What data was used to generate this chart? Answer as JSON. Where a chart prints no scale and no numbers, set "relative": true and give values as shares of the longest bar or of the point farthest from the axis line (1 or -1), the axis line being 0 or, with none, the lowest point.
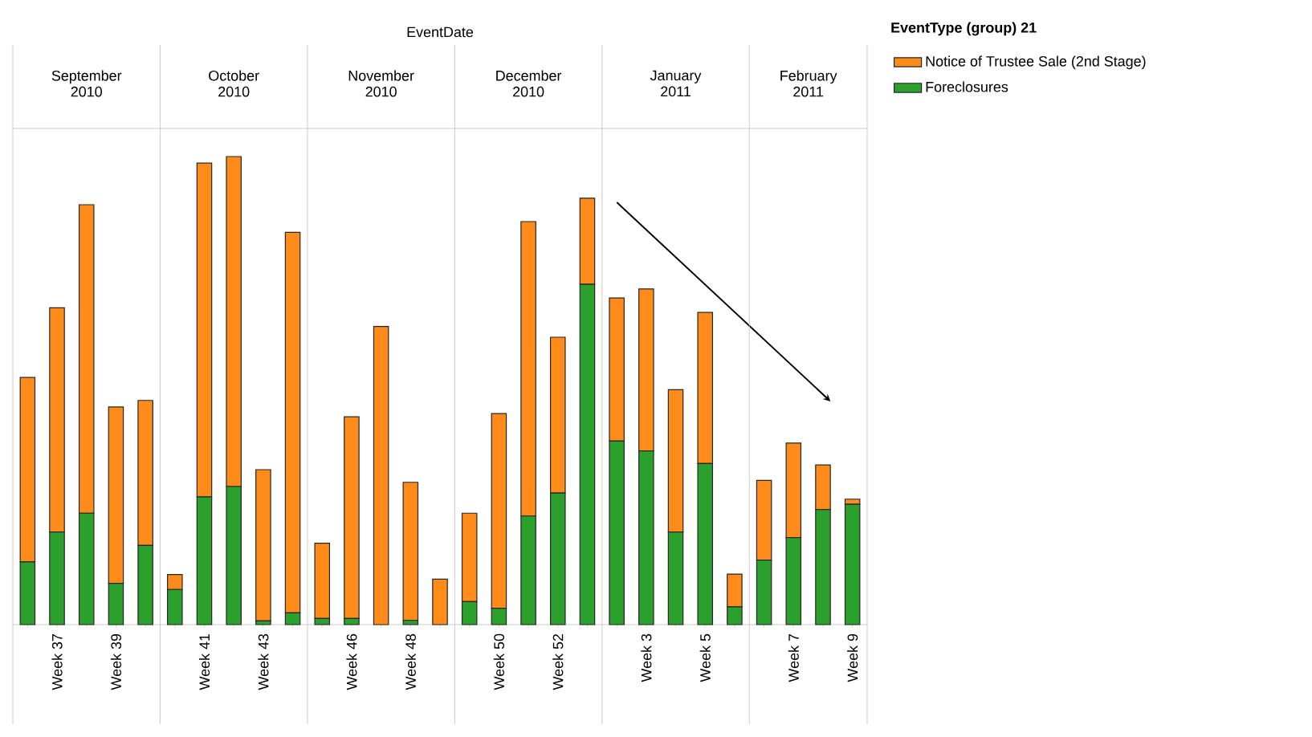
{
  "chart_data": {
    "type": "bar",
    "stacked": true,
    "relative": true,
    "title": "EventDate",
    "legend_title": "EventType (group) 21",
    "legend": "top right",
    "categories": [
      null,
      "Week 37",
      null,
      "Week 39",
      null,
      null,
      "Week 41",
      null,
      "Week 43",
      null,
      null,
      "Week 46",
      null,
      "Week 48",
      null,
      null,
      "Week 50",
      null,
      "Week 52",
      null,
      null,
      "Week 3",
      null,
      "Week 5",
      null,
      null,
      "Week 7",
      null,
      "Week 9"
    ],
    "series": [
      {
        "name": "Foreclosures",
        "color": "#2ca02c",
        "values": [
          0.134,
          0.198,
          0.238,
          0.088,
          0.169,
          0.075,
          0.273,
          0.295,
          0.008,
          0.025,
          0.013,
          0.013,
          0,
          0.009,
          0,
          0.049,
          0.035,
          0.232,
          0.281,
          0.727,
          0.392,
          0.371,
          0.198,
          0.344,
          0.038,
          0.138,
          0.186,
          0.246,
          0.257
        ]
      },
      {
        "name": "Notice of Trustee Sale (2nd Stage)",
        "color": "#ff8c1a",
        "values": [
          0.394,
          0.479,
          0.659,
          0.377,
          0.31,
          0.032,
          0.713,
          0.705,
          0.323,
          0.813,
          0.161,
          0.431,
          0.637,
          0.295,
          0.097,
          0.189,
          0.416,
          0.629,
          0.333,
          0.184,
          0.306,
          0.346,
          0.304,
          0.323,
          0.07,
          0.17,
          0.202,
          0.095,
          0.011
        ]
      }
    ],
    "annotations": [
      "September 2010",
      "October 2010",
      "November 2010",
      "December 2010",
      "January 2011",
      "February 2011"
    ]
  }
}
